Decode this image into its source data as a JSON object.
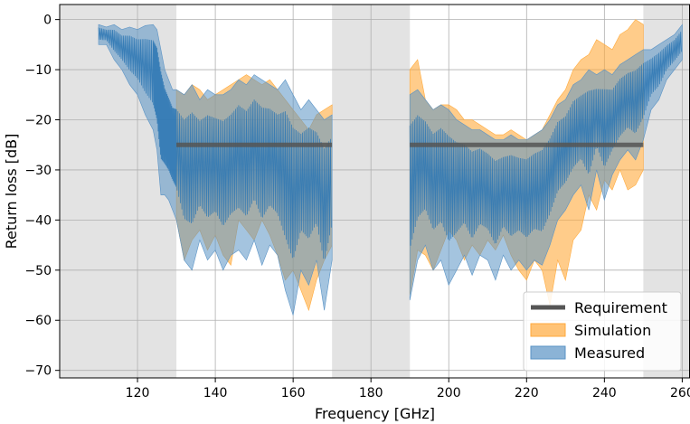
{
  "chart_data": {
    "type": "area",
    "title": "",
    "xlabel": "Frequency [GHz]",
    "ylabel": "Return loss [dB]",
    "xlim": [
      100,
      262
    ],
    "ylim": [
      -71.5,
      3
    ],
    "xticks": [
      120,
      140,
      160,
      180,
      200,
      220,
      240,
      260
    ],
    "yticks": [
      0,
      -10,
      -20,
      -30,
      -40,
      -50,
      -60,
      -70
    ],
    "grid": true,
    "legend_position": "lower-right",
    "shaded_bands": [
      [
        100,
        130
      ],
      [
        170,
        190
      ],
      [
        250,
        262
      ]
    ],
    "series": [
      {
        "name": "Requirement",
        "kind": "line",
        "color": "#555555",
        "segments": [
          {
            "x": [
              130,
              170
            ],
            "y": [
              -25,
              -25
            ]
          },
          {
            "x": [
              190,
              250
            ],
            "y": [
              -25,
              -25
            ]
          }
        ]
      },
      {
        "name": "Simulation",
        "kind": "band",
        "color": "#ffaa3c",
        "segments": [
          {
            "x": [
              130,
              132,
              134,
              136,
              138,
              140,
              142,
              144,
              146,
              148,
              150,
              152,
              154,
              156,
              158,
              160,
              162,
              164,
              166,
              168,
              170
            ],
            "upper": [
              -14,
              -15,
              -13,
              -14,
              -16,
              -15,
              -14,
              -13,
              -12,
              -11,
              -12,
              -13,
              -12,
              -14,
              -16,
              -18,
              -20,
              -22,
              -19,
              -18,
              -17
            ],
            "lower": [
              -40,
              -48,
              -44,
              -42,
              -46,
              -43,
              -47,
              -49,
              -40,
              -42,
              -44,
              -40,
              -43,
              -47,
              -52,
              -50,
              -54,
              -58,
              -52,
              -48,
              -45
            ]
          },
          {
            "x": [
              190,
              192,
              194,
              196,
              198,
              200,
              202,
              204,
              206,
              208,
              210,
              212,
              214,
              216,
              218,
              220,
              222,
              224,
              226,
              228,
              230,
              232,
              234,
              236,
              238,
              240,
              242,
              244,
              246,
              248,
              250
            ],
            "upper": [
              -10,
              -8,
              -16,
              -18,
              -17,
              -17,
              -18,
              -20,
              -20,
              -21,
              -22,
              -23,
              -23,
              -22,
              -23,
              -24,
              -23,
              -22,
              -19,
              -16,
              -14,
              -10,
              -8,
              -7,
              -4,
              -5,
              -6,
              -3,
              -2,
              0,
              -1
            ],
            "lower": [
              -55,
              -46,
              -47,
              -50,
              -46,
              -42,
              -44,
              -48,
              -45,
              -47,
              -44,
              -46,
              -43,
              -47,
              -50,
              -52,
              -48,
              -50,
              -57,
              -48,
              -52,
              -44,
              -42,
              -35,
              -38,
              -32,
              -34,
              -30,
              -34,
              -33,
              -30
            ]
          }
        ]
      },
      {
        "name": "Measured",
        "kind": "band",
        "color": "#5a93c5",
        "segments": [
          {
            "x": [
              110,
              112,
              114,
              116,
              118,
              120,
              122,
              124,
              125,
              126,
              127,
              128,
              129,
              130,
              132,
              134,
              136,
              138,
              140,
              142,
              144,
              146,
              148,
              150,
              152,
              154,
              156,
              158,
              160,
              162,
              164,
              166,
              168,
              170
            ],
            "upper": [
              -1,
              -1.5,
              -1,
              -2,
              -1.5,
              -2,
              -1.2,
              -1,
              -2,
              -6,
              -10,
              -12,
              -14,
              -14,
              -15,
              -13,
              -16,
              -14,
              -15,
              -15,
              -14,
              -12,
              -13,
              -11,
              -12,
              -13,
              -14,
              -12,
              -15,
              -18,
              -16,
              -18,
              -20,
              -19
            ],
            "lower": [
              -5,
              -5,
              -8,
              -10,
              -13,
              -15,
              -19,
              -22,
              -26,
              -35,
              -35,
              -36,
              -38,
              -40,
              -48,
              -50,
              -44,
              -48,
              -46,
              -50,
              -47,
              -46,
              -48,
              -44,
              -49,
              -45,
              -47,
              -54,
              -59,
              -50,
              -53,
              -48,
              -58,
              -48
            ]
          },
          {
            "x": [
              190,
              192,
              194,
              196,
              198,
              200,
              202,
              204,
              206,
              208,
              210,
              212,
              214,
              216,
              218,
              220,
              222,
              224,
              226,
              228,
              230,
              232,
              234,
              236,
              238,
              240,
              242,
              244,
              246,
              248,
              250,
              252,
              254,
              256,
              258,
              260
            ],
            "upper": [
              -15,
              -14,
              -16,
              -18,
              -17,
              -18,
              -20,
              -21,
              -22,
              -22,
              -23,
              -24,
              -24,
              -23,
              -24,
              -24,
              -23,
              -22,
              -20,
              -17,
              -16,
              -13,
              -12,
              -10,
              -11,
              -10,
              -11,
              -9,
              -8,
              -7,
              -6,
              -6,
              -5,
              -4,
              -3,
              -1
            ],
            "lower": [
              -56,
              -48,
              -45,
              -50,
              -48,
              -53,
              -50,
              -47,
              -51,
              -47,
              -48,
              -52,
              -47,
              -50,
              -48,
              -50,
              -48,
              -49,
              -45,
              -40,
              -38,
              -35,
              -33,
              -38,
              -30,
              -36,
              -31,
              -28,
              -26,
              -28,
              -24,
              -18,
              -16,
              -12,
              -10,
              -8
            ]
          }
        ]
      }
    ]
  }
}
